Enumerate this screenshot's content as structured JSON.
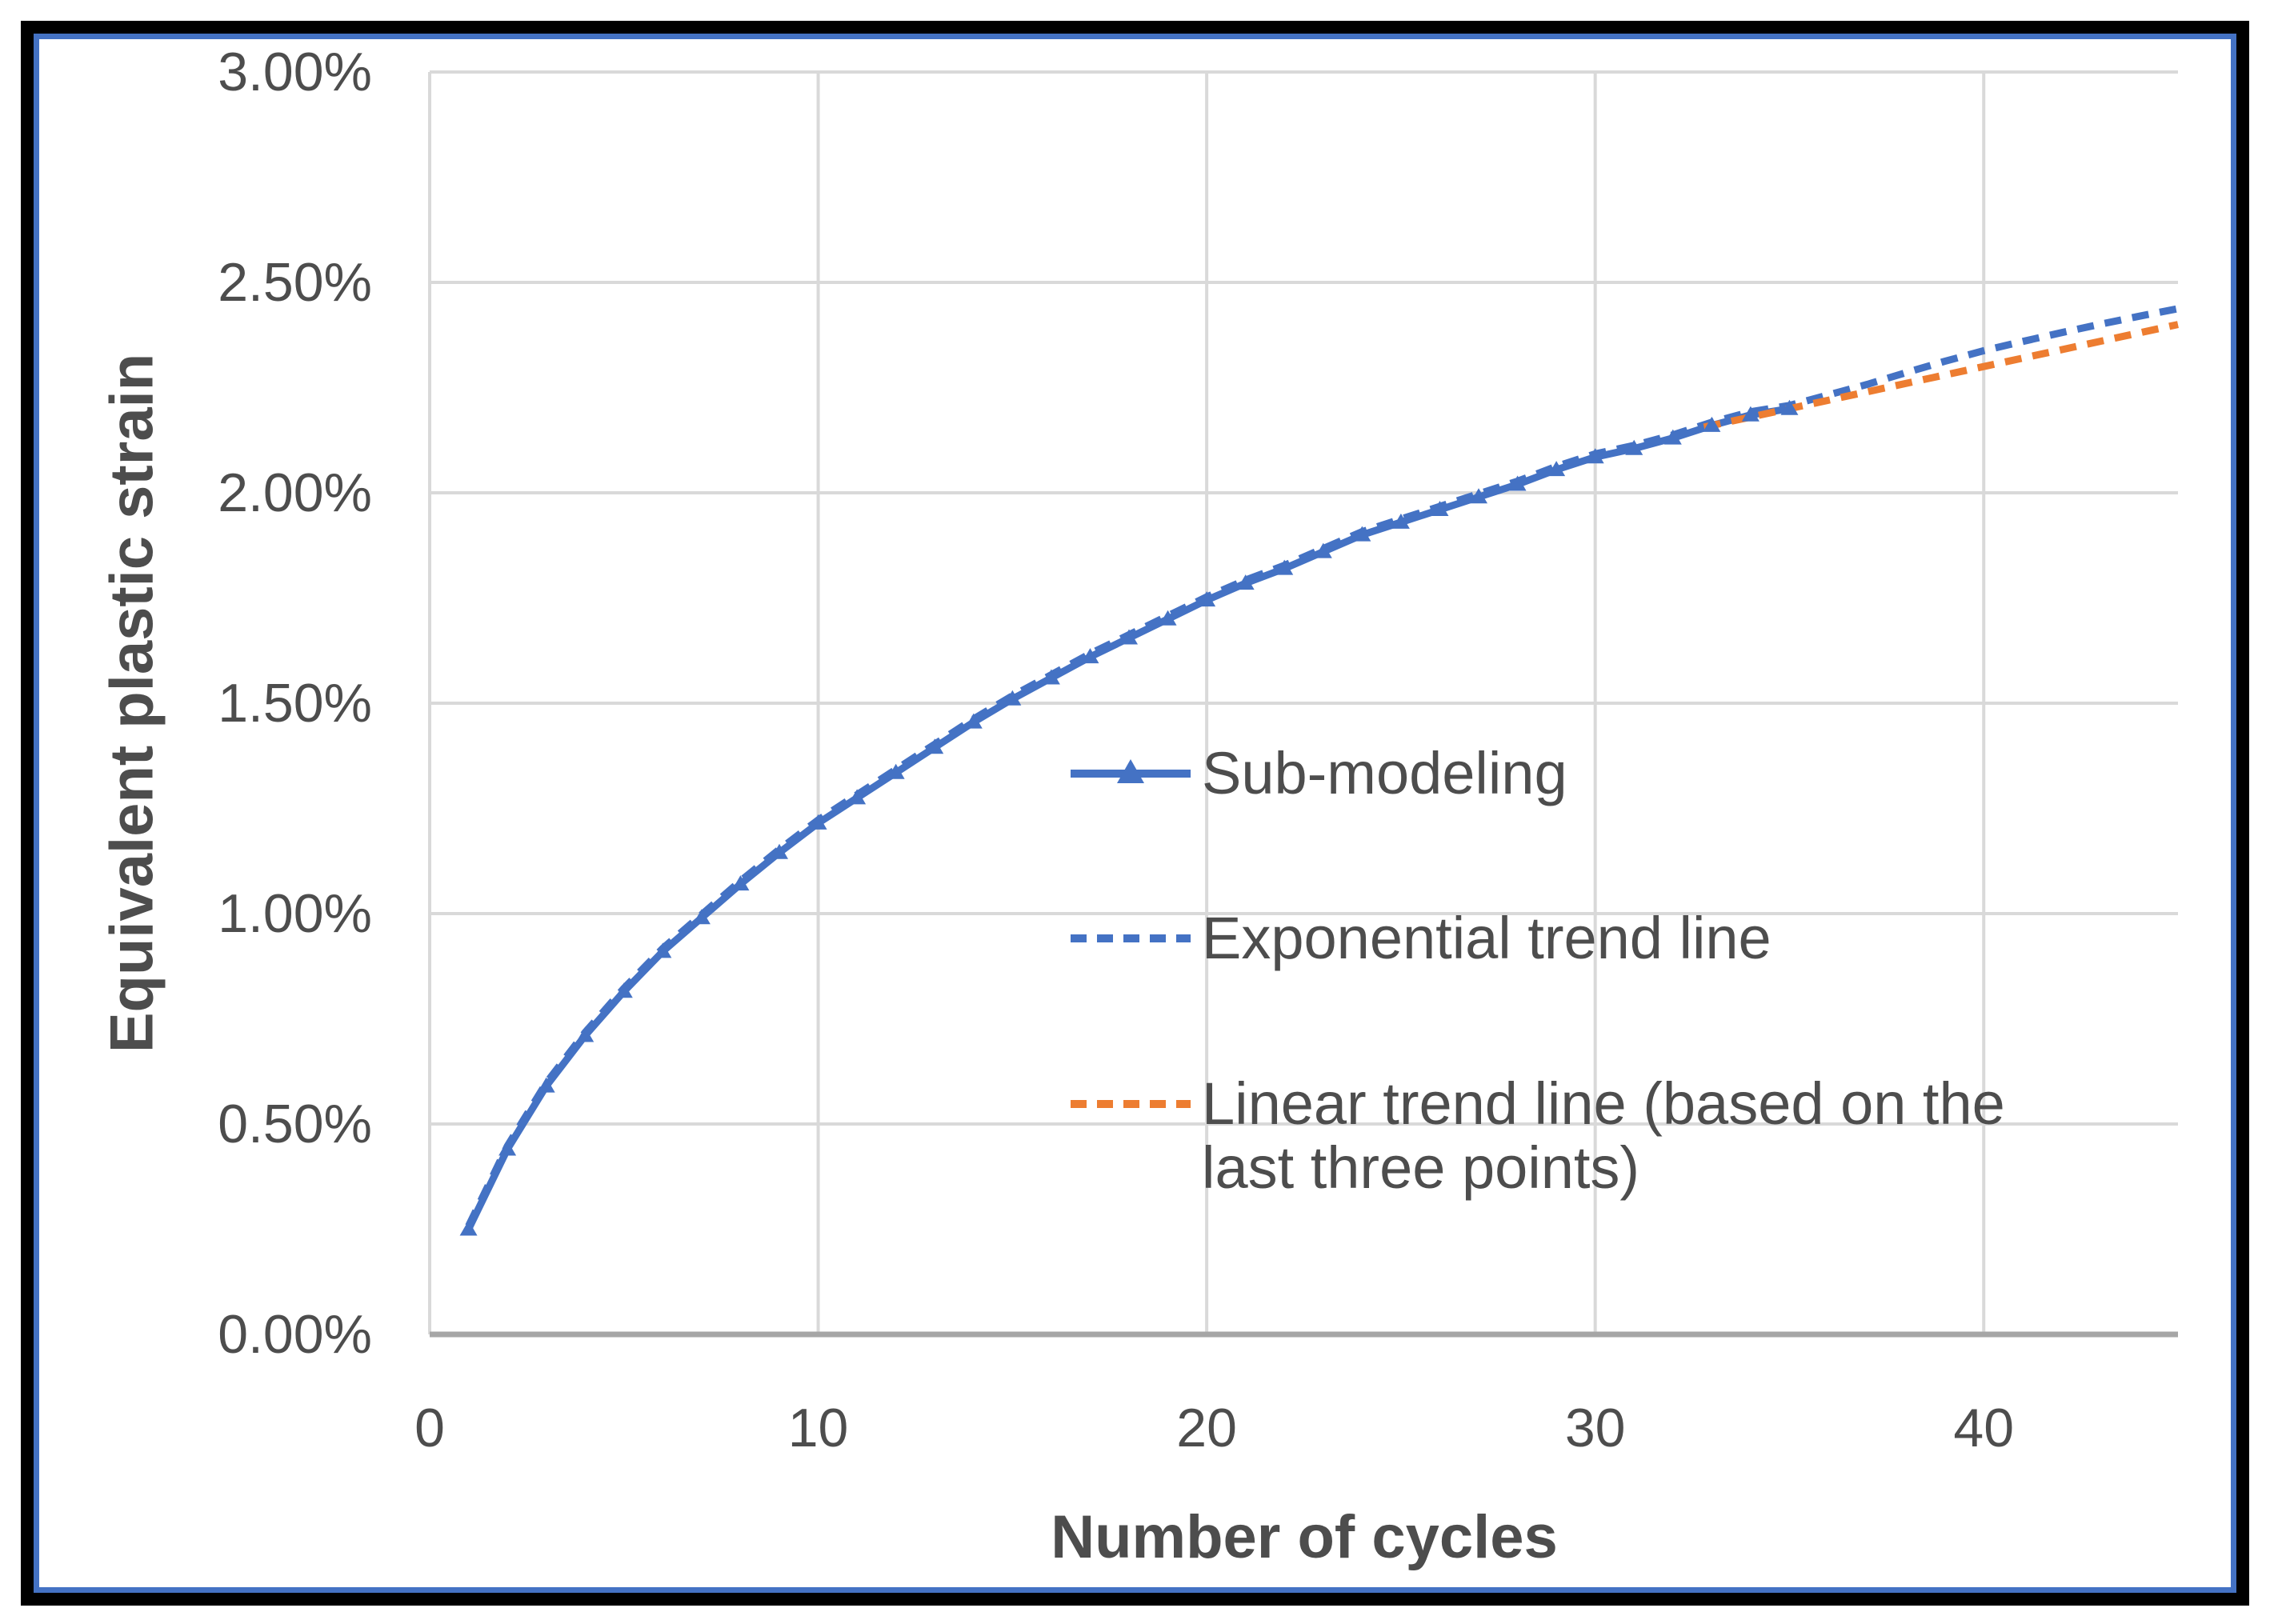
{
  "frame": {
    "outer_border_color": "#000000",
    "inner_border_color": "#4472C4"
  },
  "axes": {
    "y_title": "Equivalent plastic strain",
    "x_title": "Number of cycles",
    "text_color": "#4d4d4d",
    "gridline_color": "#d9d9d9",
    "axis_line_color": "#a6a6a6",
    "y_ticks": [
      {
        "label": "3.00%",
        "value": 3.0
      },
      {
        "label": "2.50%",
        "value": 2.5
      },
      {
        "label": "2.00%",
        "value": 2.0
      },
      {
        "label": "1.50%",
        "value": 1.5
      },
      {
        "label": "1.00%",
        "value": 1.0
      },
      {
        "label": "0.50%",
        "value": 0.5
      },
      {
        "label": "0.00%",
        "value": 0.0
      }
    ],
    "x_ticks": [
      {
        "label": "0",
        "value": 0
      },
      {
        "label": "10",
        "value": 10
      },
      {
        "label": "20",
        "value": 20
      },
      {
        "label": "30",
        "value": 30
      },
      {
        "label": "40",
        "value": 40
      }
    ]
  },
  "legend": {
    "items": [
      {
        "label_lines": [
          "Sub-modeling"
        ],
        "swatch": "solid-line-triangle",
        "color": "#4472C4"
      },
      {
        "label_lines": [
          "Exponential trend line"
        ],
        "swatch": "dashed-line",
        "color": "#4472C4"
      },
      {
        "label_lines": [
          "Linear trend line (based on the",
          "last three points)"
        ],
        "swatch": "dashed-line",
        "color": "#ED7D31"
      }
    ]
  },
  "chart_data": {
    "type": "line",
    "xlabel": "Number of cycles",
    "ylabel": "Equivalent plastic strain",
    "xlim": [
      0,
      45
    ],
    "ylim_percent": [
      0.0,
      3.0
    ],
    "grid": true,
    "legend_position": "inside-right",
    "series": [
      {
        "name": "Sub-modeling",
        "style": "solid",
        "markers": "triangle-up",
        "color": "#4472C4",
        "x": [
          1,
          2,
          3,
          4,
          5,
          6,
          7,
          8,
          9,
          10,
          11,
          12,
          13,
          14,
          15,
          16,
          17,
          18,
          19,
          20,
          21,
          22,
          23,
          24,
          25,
          26,
          27,
          28,
          29,
          30,
          31,
          32,
          33,
          34,
          35
        ],
        "y_percent": [
          0.25,
          0.44,
          0.59,
          0.71,
          0.815,
          0.91,
          0.99,
          1.07,
          1.145,
          1.215,
          1.275,
          1.335,
          1.395,
          1.455,
          1.51,
          1.56,
          1.61,
          1.655,
          1.7,
          1.745,
          1.785,
          1.82,
          1.86,
          1.9,
          1.93,
          1.96,
          1.99,
          2.02,
          2.055,
          2.085,
          2.105,
          2.13,
          2.16,
          2.185,
          2.2
        ]
      },
      {
        "name": "Exponential trend line",
        "style": "dashed",
        "markers": "none",
        "color": "#4472C4",
        "x": [
          1,
          2,
          3,
          4,
          5,
          6,
          7,
          8,
          9,
          10,
          11,
          12,
          13,
          14,
          15,
          16,
          17,
          18,
          19,
          20,
          21,
          22,
          23,
          24,
          25,
          26,
          27,
          28,
          29,
          30,
          31,
          32,
          33,
          34,
          35,
          36,
          37,
          38,
          39,
          40,
          41,
          42,
          43,
          44,
          45
        ],
        "y_percent": [
          0.25,
          0.44,
          0.59,
          0.71,
          0.815,
          0.91,
          0.99,
          1.07,
          1.145,
          1.215,
          1.275,
          1.335,
          1.395,
          1.455,
          1.51,
          1.56,
          1.61,
          1.655,
          1.7,
          1.745,
          1.785,
          1.82,
          1.86,
          1.9,
          1.93,
          1.96,
          1.99,
          2.02,
          2.055,
          2.085,
          2.105,
          2.13,
          2.16,
          2.185,
          2.2,
          2.225,
          2.25,
          2.278,
          2.305,
          2.33,
          2.352,
          2.373,
          2.393,
          2.412,
          2.43
        ]
      },
      {
        "name": "Linear trend line (based on the last three points)",
        "style": "dashed",
        "markers": "none",
        "color": "#ED7D31",
        "x": [
          32.8,
          45
        ],
        "y_percent": [
          2.156,
          2.4
        ]
      }
    ]
  }
}
